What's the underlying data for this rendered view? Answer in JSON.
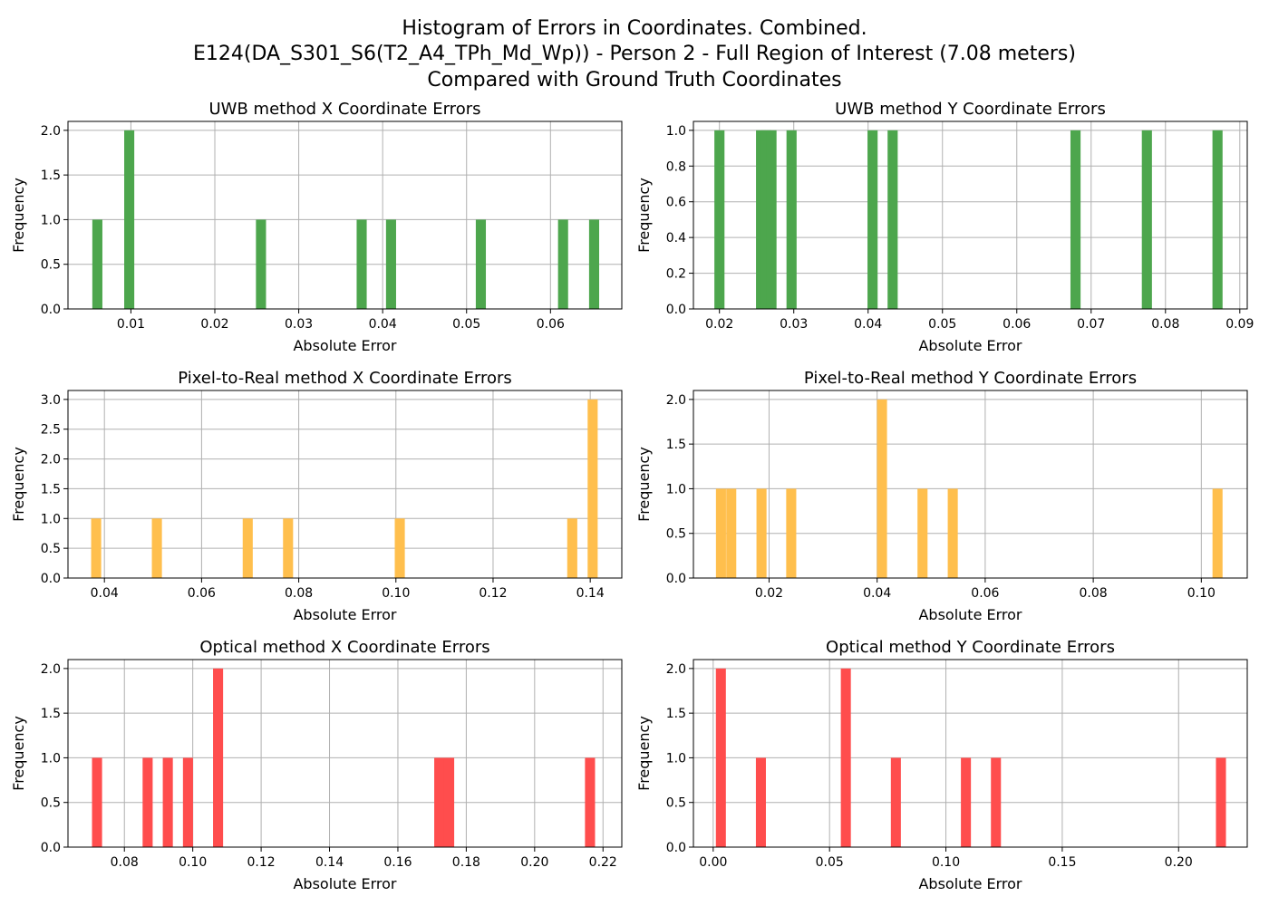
{
  "figure": {
    "title_lines": [
      "Histogram of Errors in Coordinates. Combined.",
      "E124(DA_S301_S6(T2_A4_TPh_Md_Wp)) - Person 2 - Full Region of Interest (7.08 meters)",
      "Compared with Ground Truth Coordinates"
    ]
  },
  "chart_data": [
    {
      "type": "bar",
      "title": "UWB method X Coordinate Errors",
      "xlabel": "Absolute Error",
      "ylabel": "Frequency",
      "color": "#4da64d",
      "xlim": [
        0.0025,
        0.0685
      ],
      "ylim": [
        0,
        2.1
      ],
      "xticks": [
        0.01,
        0.02,
        0.03,
        0.04,
        0.05,
        0.06
      ],
      "xtick_labels": [
        "0.01",
        "0.02",
        "0.03",
        "0.04",
        "0.05",
        "0.06"
      ],
      "yticks": [
        0,
        0.5,
        1.0,
        1.5,
        2.0
      ],
      "ytick_labels": [
        "0.0",
        "0.5",
        "1.0",
        "1.5",
        "2.0"
      ],
      "bin_width": 0.0012,
      "bins": [
        {
          "x": 0.006,
          "count": 1
        },
        {
          "x": 0.0098,
          "count": 2
        },
        {
          "x": 0.0255,
          "count": 1
        },
        {
          "x": 0.0375,
          "count": 1
        },
        {
          "x": 0.041,
          "count": 1
        },
        {
          "x": 0.0517,
          "count": 1
        },
        {
          "x": 0.0615,
          "count": 1
        },
        {
          "x": 0.0652,
          "count": 1
        }
      ]
    },
    {
      "type": "bar",
      "title": "UWB method Y Coordinate Errors",
      "xlabel": "Absolute Error",
      "ylabel": "Frequency",
      "color": "#4da64d",
      "xlim": [
        0.0165,
        0.091
      ],
      "ylim": [
        0,
        1.05
      ],
      "xticks": [
        0.02,
        0.03,
        0.04,
        0.05,
        0.06,
        0.07,
        0.08,
        0.09
      ],
      "xtick_labels": [
        "0.02",
        "0.03",
        "0.04",
        "0.05",
        "0.06",
        "0.07",
        "0.08",
        "0.09"
      ],
      "yticks": [
        0,
        0.2,
        0.4,
        0.6,
        0.8,
        1.0
      ],
      "ytick_labels": [
        "0.0",
        "0.2",
        "0.4",
        "0.6",
        "0.8",
        "1.0"
      ],
      "bin_width": 0.00136,
      "bins": [
        {
          "x": 0.02,
          "count": 1
        },
        {
          "x": 0.0256,
          "count": 1
        },
        {
          "x": 0.0263,
          "count": 1
        },
        {
          "x": 0.027,
          "count": 1
        },
        {
          "x": 0.0297,
          "count": 1
        },
        {
          "x": 0.0406,
          "count": 1
        },
        {
          "x": 0.0433,
          "count": 1
        },
        {
          "x": 0.0679,
          "count": 1
        },
        {
          "x": 0.0775,
          "count": 1
        },
        {
          "x": 0.087,
          "count": 1
        }
      ]
    },
    {
      "type": "bar",
      "title": "Pixel-to-Real method X Coordinate Errors",
      "xlabel": "Absolute Error",
      "ylabel": "Frequency",
      "color": "#ffbf4d",
      "xlim": [
        0.0325,
        0.1465
      ],
      "ylim": [
        0,
        3.15
      ],
      "xticks": [
        0.04,
        0.06,
        0.08,
        0.1,
        0.12,
        0.14
      ],
      "xtick_labels": [
        "0.04",
        "0.06",
        "0.08",
        "0.10",
        "0.12",
        "0.14"
      ],
      "yticks": [
        0,
        0.5,
        1.0,
        1.5,
        2.0,
        2.5,
        3.0
      ],
      "ytick_labels": [
        "0.0",
        "0.5",
        "1.0",
        "1.5",
        "2.0",
        "2.5",
        "3.0"
      ],
      "bin_width": 0.00207,
      "bins": [
        {
          "x": 0.0383,
          "count": 1
        },
        {
          "x": 0.0508,
          "count": 1
        },
        {
          "x": 0.0695,
          "count": 1
        },
        {
          "x": 0.0778,
          "count": 1
        },
        {
          "x": 0.1008,
          "count": 1
        },
        {
          "x": 0.1363,
          "count": 1
        },
        {
          "x": 0.1405,
          "count": 3
        }
      ]
    },
    {
      "type": "bar",
      "title": "Pixel-to-Real method Y Coordinate Errors",
      "xlabel": "Absolute Error",
      "ylabel": "Frequency",
      "color": "#ffbf4d",
      "xlim": [
        0.006,
        0.1085
      ],
      "ylim": [
        0,
        2.1
      ],
      "xticks": [
        0.02,
        0.04,
        0.06,
        0.08,
        0.1
      ],
      "xtick_labels": [
        "0.02",
        "0.04",
        "0.06",
        "0.08",
        "0.10"
      ],
      "yticks": [
        0,
        0.5,
        1.0,
        1.5,
        2.0
      ],
      "ytick_labels": [
        "0.0",
        "0.5",
        "1.0",
        "1.5",
        "2.0"
      ],
      "bin_width": 0.00186,
      "bins": [
        {
          "x": 0.0111,
          "count": 1
        },
        {
          "x": 0.013,
          "count": 1
        },
        {
          "x": 0.0186,
          "count": 1
        },
        {
          "x": 0.0241,
          "count": 1
        },
        {
          "x": 0.0409,
          "count": 2
        },
        {
          "x": 0.0484,
          "count": 1
        },
        {
          "x": 0.054,
          "count": 1
        },
        {
          "x": 0.103,
          "count": 1
        }
      ]
    },
    {
      "type": "bar",
      "title": "Optical method X Coordinate Errors",
      "xlabel": "Absolute Error",
      "ylabel": "Frequency",
      "color": "#ff4d4d",
      "xlim": [
        0.0635,
        0.2255
      ],
      "ylim": [
        0,
        2.1
      ],
      "xticks": [
        0.08,
        0.1,
        0.12,
        0.14,
        0.16,
        0.18,
        0.2,
        0.22
      ],
      "xtick_labels": [
        "0.08",
        "0.10",
        "0.12",
        "0.14",
        "0.16",
        "0.18",
        "0.20",
        "0.22"
      ],
      "yticks": [
        0,
        0.5,
        1.0,
        1.5,
        2.0
      ],
      "ytick_labels": [
        "0.0",
        "0.5",
        "1.0",
        "1.5",
        "2.0"
      ],
      "bin_width": 0.00294,
      "bins": [
        {
          "x": 0.072,
          "count": 1
        },
        {
          "x": 0.0868,
          "count": 1
        },
        {
          "x": 0.0927,
          "count": 1
        },
        {
          "x": 0.0986,
          "count": 1
        },
        {
          "x": 0.1074,
          "count": 2
        },
        {
          "x": 0.1721,
          "count": 1
        },
        {
          "x": 0.175,
          "count": 1
        },
        {
          "x": 0.2162,
          "count": 1
        }
      ]
    },
    {
      "type": "bar",
      "title": "Optical method Y Coordinate Errors",
      "xlabel": "Absolute Error",
      "ylabel": "Frequency",
      "color": "#ff4d4d",
      "xlim": [
        -0.0085,
        0.2295
      ],
      "ylim": [
        0,
        2.1
      ],
      "xticks": [
        0.0,
        0.05,
        0.1,
        0.15,
        0.2
      ],
      "xtick_labels": [
        "0.00",
        "0.05",
        "0.10",
        "0.15",
        "0.20"
      ],
      "yticks": [
        0,
        0.5,
        1.0,
        1.5,
        2.0
      ],
      "ytick_labels": [
        "0.0",
        "0.5",
        "1.0",
        "1.5",
        "2.0"
      ],
      "bin_width": 0.0043,
      "bins": [
        {
          "x": 0.0033,
          "count": 2
        },
        {
          "x": 0.0205,
          "count": 1
        },
        {
          "x": 0.057,
          "count": 2
        },
        {
          "x": 0.0785,
          "count": 1
        },
        {
          "x": 0.1086,
          "count": 1
        },
        {
          "x": 0.1215,
          "count": 1
        },
        {
          "x": 0.2182,
          "count": 1
        }
      ]
    }
  ]
}
